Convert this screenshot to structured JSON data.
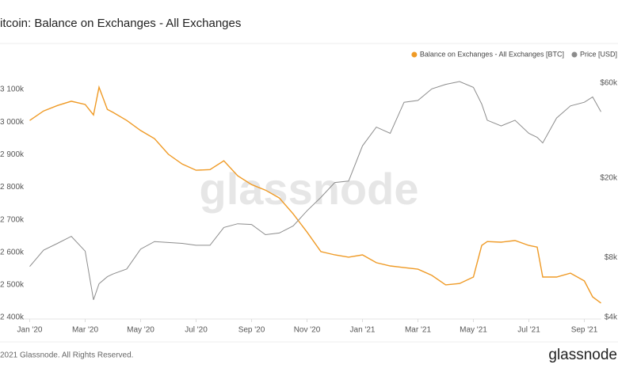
{
  "chart_data": {
    "type": "line",
    "title": "itcoin: Balance on Exchanges - All Exchanges",
    "x": [
      0,
      0.5,
      1,
      1.5,
      2,
      2.3,
      2.5,
      2.8,
      3,
      3.5,
      4,
      4.5,
      5,
      5.5,
      6,
      6.5,
      7,
      7.5,
      8,
      8.5,
      9,
      9.5,
      10,
      10.5,
      11,
      11.5,
      12,
      12.5,
      13,
      13.5,
      14,
      14.5,
      15,
      15.5,
      16,
      16.3,
      16.5,
      17,
      17.5,
      18,
      18.3,
      18.5,
      19,
      19.5,
      20,
      20.3,
      20.6
    ],
    "series": [
      {
        "name": "Balance on Exchanges - All Exchanges [BTC]",
        "color": "#ef9a25",
        "values": [
          3005000,
          3034000,
          3051000,
          3064000,
          3054000,
          3022000,
          3107000,
          3039000,
          3030000,
          3005000,
          2974000,
          2949000,
          2901000,
          2871000,
          2852000,
          2854000,
          2881000,
          2835000,
          2808000,
          2791000,
          2767000,
          2718000,
          2662000,
          2602000,
          2592000,
          2585000,
          2592000,
          2568000,
          2558000,
          2553000,
          2548000,
          2529000,
          2500000,
          2504000,
          2524000,
          2621000,
          2633000,
          2631000,
          2636000,
          2621000,
          2616000,
          2524000,
          2524000,
          2536000,
          2512000,
          2463000,
          2444000
        ]
      },
      {
        "name": "Price [USD]",
        "color": "#8c8c8c",
        "axis": "y2",
        "values": [
          7200,
          8700,
          9400,
          10200,
          8600,
          4900,
          5900,
          6400,
          6600,
          7000,
          8800,
          9600,
          9500,
          9400,
          9200,
          9200,
          11300,
          11800,
          11700,
          10400,
          10600,
          11500,
          13700,
          16000,
          19000,
          19300,
          29000,
          36000,
          33500,
          48000,
          49000,
          56000,
          59000,
          61000,
          57000,
          47000,
          39000,
          36500,
          39000,
          33500,
          32000,
          30000,
          40000,
          46000,
          48000,
          51000,
          43000
        ]
      }
    ],
    "xlim": [
      -0.3,
      20.6
    ],
    "xticks": [
      {
        "value": 0,
        "label": "Jan '20"
      },
      {
        "value": 2,
        "label": "Mar '20"
      },
      {
        "value": 4,
        "label": "May '20"
      },
      {
        "value": 6,
        "label": "Jul '20"
      },
      {
        "value": 8,
        "label": "Sep '20"
      },
      {
        "value": 10,
        "label": "Nov '20"
      },
      {
        "value": 12,
        "label": "Jan '21"
      },
      {
        "value": 14,
        "label": "Mar '21"
      },
      {
        "value": 16,
        "label": "May '21"
      },
      {
        "value": 18,
        "label": "Jul '21"
      },
      {
        "value": 20,
        "label": "Sep '21"
      }
    ],
    "ylim": [
      2400000,
      3144000
    ],
    "yticks": [
      {
        "value": 2400000,
        "label": "2 400k"
      },
      {
        "value": 2500000,
        "label": "2 500k"
      },
      {
        "value": 2600000,
        "label": "2 600k"
      },
      {
        "value": 2700000,
        "label": "2 700k"
      },
      {
        "value": 2800000,
        "label": "2 800k"
      },
      {
        "value": 2900000,
        "label": "2 900k"
      },
      {
        "value": 3000000,
        "label": "3 000k"
      },
      {
        "value": 3100000,
        "label": "3 100k"
      }
    ],
    "y2lim": [
      4000,
      65600
    ],
    "y2scale": "log",
    "y2ticks": [
      {
        "value": 4000,
        "label": "$4k"
      },
      {
        "value": 8000,
        "label": "$8k"
      },
      {
        "value": 20000,
        "label": "$20k"
      },
      {
        "value": 60000,
        "label": "$60k"
      }
    ],
    "grid": false,
    "legend": "top-right"
  },
  "watermark": "glassnode",
  "footer": {
    "copyright": "2021 Glassnode. All Rights Reserved.",
    "logo": "glassnode"
  }
}
